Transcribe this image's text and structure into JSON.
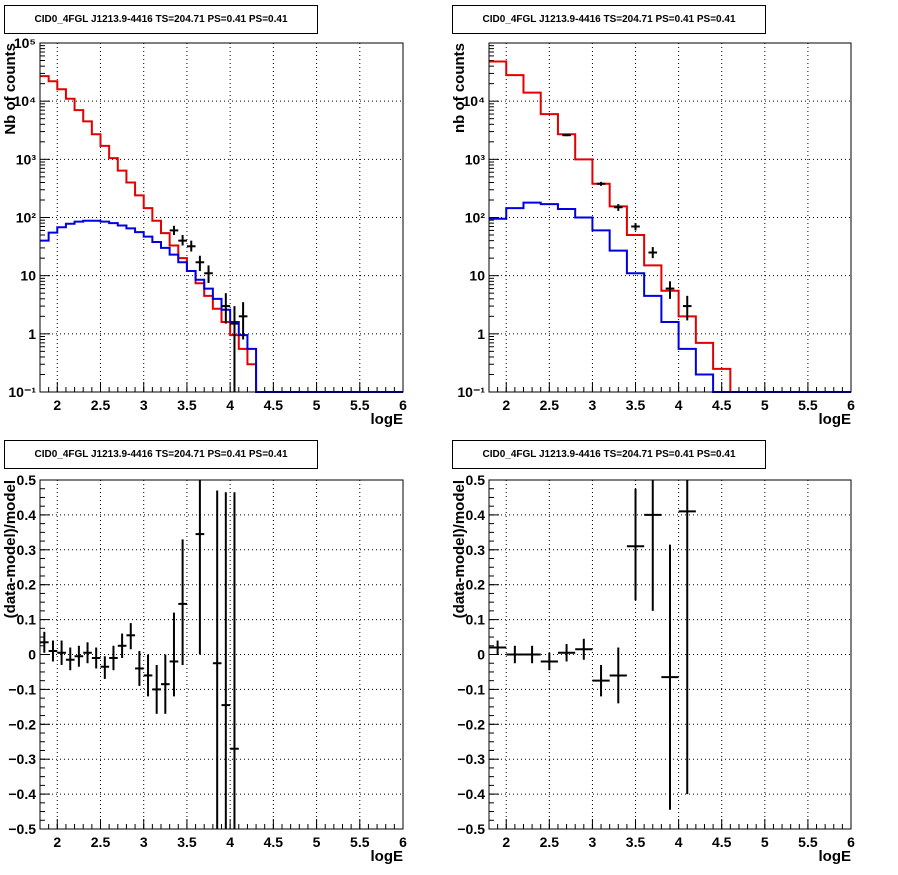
{
  "colors": {
    "data": "#000000",
    "total_model": "#e30000",
    "source_model": "#0000e0",
    "grid": "#000000"
  },
  "chart_data": [
    {
      "id": "counts_left",
      "type": "line",
      "title": "CID0_4FGL J1213.9-4416 TS=204.71 PS=0.41 PS=0.41",
      "xlabel": "logE",
      "ylabel": "Nb of counts",
      "log_y": true,
      "grid": true,
      "xlim": [
        1.8,
        6
      ],
      "ylim": [
        0.1,
        100000
      ],
      "x_ticks": [
        "2",
        "2.5",
        "3",
        "3.5",
        "4",
        "4.5",
        "5",
        "5.5",
        "6"
      ],
      "y_ticks": [
        "10⁻¹",
        "1",
        "10",
        "10²",
        "10³",
        "10⁴",
        "10⁵"
      ],
      "bin_edges": [
        1.8,
        1.9,
        2.0,
        2.1,
        2.2,
        2.3,
        2.4,
        2.5,
        2.6,
        2.7,
        2.8,
        2.9,
        3.0,
        3.1,
        3.2,
        3.3,
        3.4,
        3.5,
        3.6,
        3.7,
        3.8,
        3.9,
        4.0,
        4.1,
        4.2,
        4.3,
        4.4,
        4.5,
        4.6,
        4.7,
        4.8,
        4.9,
        5.0,
        5.1,
        5.2,
        5.3,
        5.4,
        5.5,
        5.6,
        5.7,
        5.8,
        5.9,
        6.0
      ],
      "series": [
        {
          "role": "total_model",
          "values": [
            27000,
            22000,
            16000,
            11000,
            7000,
            4500,
            2700,
            1700,
            1050,
            640,
            400,
            240,
            145,
            88,
            54,
            33,
            20,
            12,
            7.4,
            4.5,
            2.7,
            1.6,
            0.95,
            0.55,
            0.3,
            0.1,
            0.1,
            0.1,
            0.1,
            0.1,
            0.1,
            0.1,
            0.1,
            0.1,
            0.1,
            0.1,
            0.1,
            0.1,
            0.1,
            0.1,
            0.1,
            0.1
          ]
        },
        {
          "role": "source_model",
          "values": [
            40,
            55,
            68,
            78,
            85,
            88,
            88,
            85,
            80,
            73,
            65,
            56,
            47,
            38,
            30,
            23,
            17,
            12,
            8.5,
            6,
            4,
            2.6,
            1.6,
            0.95,
            0.55,
            0.1,
            0.1,
            0.1,
            0.1,
            0.1,
            0.1,
            0.1,
            0.1,
            0.1,
            0.1,
            0.1,
            0.1,
            0.1,
            0.1,
            0.1,
            0.1,
            0.1
          ]
        },
        {
          "role": "data",
          "points": [
            {
              "x": 3.35,
              "y": 60,
              "lo": 50,
              "hi": 72
            },
            {
              "x": 3.45,
              "y": 40,
              "lo": 33,
              "hi": 50
            },
            {
              "x": 3.55,
              "y": 32,
              "lo": 26,
              "hi": 40
            },
            {
              "x": 3.65,
              "y": 17,
              "lo": 12,
              "hi": 22
            },
            {
              "x": 3.75,
              "y": 11,
              "lo": 7.5,
              "hi": 15
            },
            {
              "x": 3.95,
              "y": 3,
              "lo": 1.5,
              "hi": 5
            },
            {
              "x": 4.05,
              "y": 1.5,
              "lo": 0.1,
              "hi": 3
            },
            {
              "x": 4.15,
              "y": 2,
              "lo": 0.8,
              "hi": 3.5
            }
          ]
        }
      ]
    },
    {
      "id": "counts_right",
      "type": "line",
      "title": "CID0_4FGL J1213.9-4416 TS=204.71 PS=0.41 PS=0.41",
      "xlabel": "logE",
      "ylabel": "nb of counts",
      "log_y": true,
      "grid": true,
      "xlim": [
        1.8,
        6
      ],
      "ylim": [
        0.1,
        100000
      ],
      "x_ticks": [
        "2",
        "2.5",
        "3",
        "3.5",
        "4",
        "4.5",
        "5",
        "5.5",
        "6"
      ],
      "y_ticks": [
        "10⁻¹",
        "1",
        "10",
        "10²",
        "10³",
        "10⁴"
      ],
      "bin_edges": [
        1.8,
        2.0,
        2.2,
        2.4,
        2.6,
        2.8,
        3.0,
        3.2,
        3.4,
        3.6,
        3.8,
        4.0,
        4.2,
        4.4,
        4.6,
        4.8,
        5.0,
        5.2,
        5.4,
        5.6,
        5.8,
        6.0
      ],
      "series": [
        {
          "role": "total_model",
          "values": [
            48000,
            28000,
            14000,
            6000,
            2700,
            1000,
            380,
            155,
            50,
            15,
            5.5,
            2,
            0.7,
            0.25,
            0.1,
            0.1,
            0.1,
            0.1,
            0.1,
            0.1,
            0.1
          ]
        },
        {
          "role": "source_model",
          "values": [
            95,
            145,
            180,
            170,
            140,
            100,
            60,
            27,
            11,
            4.5,
            1.6,
            0.55,
            0.2,
            0.1,
            0.1,
            0.1,
            0.1,
            0.1,
            0.1,
            0.1,
            0.1
          ]
        },
        {
          "role": "data",
          "points": [
            {
              "x": 2.7,
              "y": 2600,
              "lo": 2500,
              "hi": 2700
            },
            {
              "x": 3.1,
              "y": 380,
              "lo": 350,
              "hi": 410
            },
            {
              "x": 3.3,
              "y": 150,
              "lo": 130,
              "hi": 170
            },
            {
              "x": 3.5,
              "y": 70,
              "lo": 60,
              "hi": 80
            },
            {
              "x": 3.7,
              "y": 25,
              "lo": 20,
              "hi": 31
            },
            {
              "x": 3.9,
              "y": 6,
              "lo": 4,
              "hi": 8
            },
            {
              "x": 4.1,
              "y": 3,
              "lo": 1.7,
              "hi": 4.5
            }
          ]
        }
      ]
    },
    {
      "id": "residuals_left",
      "type": "scatter",
      "title": "CID0_4FGL J1213.9-4416 TS=204.71 PS=0.41 PS=0.41",
      "xlabel": "logE",
      "ylabel": "(data-model)/model",
      "log_y": false,
      "grid": true,
      "xlim": [
        1.8,
        6
      ],
      "ylim": [
        -0.5,
        0.5
      ],
      "x_ticks": [
        "2",
        "2.5",
        "3",
        "3.5",
        "4",
        "4.5",
        "5",
        "5.5",
        "6"
      ],
      "y_ticks": [
        "−0.5",
        "−0.4",
        "−0.3",
        "−0.2",
        "−0.1",
        "0",
        "0.1",
        "0.2",
        "0.3",
        "0.4",
        "0.5"
      ],
      "series": [
        {
          "role": "data",
          "half_width": 0.05,
          "points": [
            {
              "x": 1.85,
              "y": 0.035,
              "lo": 0.005,
              "hi": 0.065
            },
            {
              "x": 1.95,
              "y": 0.01,
              "lo": -0.02,
              "hi": 0.04
            },
            {
              "x": 2.05,
              "y": 0.005,
              "lo": -0.03,
              "hi": 0.04
            },
            {
              "x": 2.15,
              "y": -0.015,
              "lo": -0.045,
              "hi": 0.02
            },
            {
              "x": 2.25,
              "y": -0.005,
              "lo": -0.035,
              "hi": 0.025
            },
            {
              "x": 2.35,
              "y": 0.005,
              "lo": -0.025,
              "hi": 0.035
            },
            {
              "x": 2.45,
              "y": -0.01,
              "lo": -0.04,
              "hi": 0.02
            },
            {
              "x": 2.55,
              "y": -0.035,
              "lo": -0.07,
              "hi": -0.005
            },
            {
              "x": 2.65,
              "y": -0.01,
              "lo": -0.045,
              "hi": 0.025
            },
            {
              "x": 2.75,
              "y": 0.025,
              "lo": -0.01,
              "hi": 0.06
            },
            {
              "x": 2.85,
              "y": 0.055,
              "lo": 0.015,
              "hi": 0.09
            },
            {
              "x": 2.95,
              "y": -0.04,
              "lo": -0.09,
              "hi": 0.01
            },
            {
              "x": 3.05,
              "y": -0.06,
              "lo": -0.12,
              "hi": 0.0
            },
            {
              "x": 3.15,
              "y": -0.1,
              "lo": -0.17,
              "hi": -0.03
            },
            {
              "x": 3.25,
              "y": -0.085,
              "lo": -0.17,
              "hi": 0.0
            },
            {
              "x": 3.35,
              "y": -0.02,
              "lo": -0.12,
              "hi": 0.12
            },
            {
              "x": 3.45,
              "y": 0.145,
              "lo": -0.03,
              "hi": 0.33
            },
            {
              "x": 3.65,
              "y": 0.345,
              "lo": 0.0,
              "hi": 0.5
            },
            {
              "x": 3.85,
              "y": -0.025,
              "lo": -0.5,
              "hi": 0.47
            },
            {
              "x": 3.95,
              "y": -0.145,
              "lo": -0.5,
              "hi": 0.465
            },
            {
              "x": 4.05,
              "y": -0.27,
              "lo": -0.5,
              "hi": 0.465
            }
          ]
        }
      ]
    },
    {
      "id": "residuals_right",
      "type": "scatter",
      "title": "CID0_4FGL J1213.9-4416 TS=204.71 PS=0.41 PS=0.41",
      "xlabel": "logE",
      "ylabel": "(data-model)/model",
      "log_y": false,
      "grid": true,
      "xlim": [
        1.8,
        6
      ],
      "ylim": [
        -0.5,
        0.5
      ],
      "x_ticks": [
        "2",
        "2.5",
        "3",
        "3.5",
        "4",
        "4.5",
        "5",
        "5.5",
        "6"
      ],
      "y_ticks": [
        "−0.5",
        "−0.4",
        "−0.3",
        "−0.2",
        "−0.1",
        "0",
        "0.1",
        "0.2",
        "0.3",
        "0.4",
        "0.5"
      ],
      "series": [
        {
          "role": "data",
          "half_width": 0.1,
          "points": [
            {
              "x": 1.9,
              "y": 0.02,
              "lo": 0.0,
              "hi": 0.04
            },
            {
              "x": 2.1,
              "y": 0.0,
              "lo": -0.025,
              "hi": 0.025
            },
            {
              "x": 2.3,
              "y": 0.0,
              "lo": -0.025,
              "hi": 0.025
            },
            {
              "x": 2.5,
              "y": -0.02,
              "lo": -0.045,
              "hi": 0.005
            },
            {
              "x": 2.7,
              "y": 0.005,
              "lo": -0.02,
              "hi": 0.03
            },
            {
              "x": 2.9,
              "y": 0.015,
              "lo": -0.015,
              "hi": 0.045
            },
            {
              "x": 3.1,
              "y": -0.075,
              "lo": -0.12,
              "hi": -0.03
            },
            {
              "x": 3.3,
              "y": -0.06,
              "lo": -0.14,
              "hi": 0.02
            },
            {
              "x": 3.5,
              "y": 0.31,
              "lo": 0.155,
              "hi": 0.475
            },
            {
              "x": 3.7,
              "y": 0.4,
              "lo": 0.125,
              "hi": 0.5
            },
            {
              "x": 3.9,
              "y": -0.065,
              "lo": -0.445,
              "hi": 0.315
            },
            {
              "x": 4.1,
              "y": 0.41,
              "lo": -0.4,
              "hi": 0.5
            }
          ]
        }
      ]
    }
  ]
}
